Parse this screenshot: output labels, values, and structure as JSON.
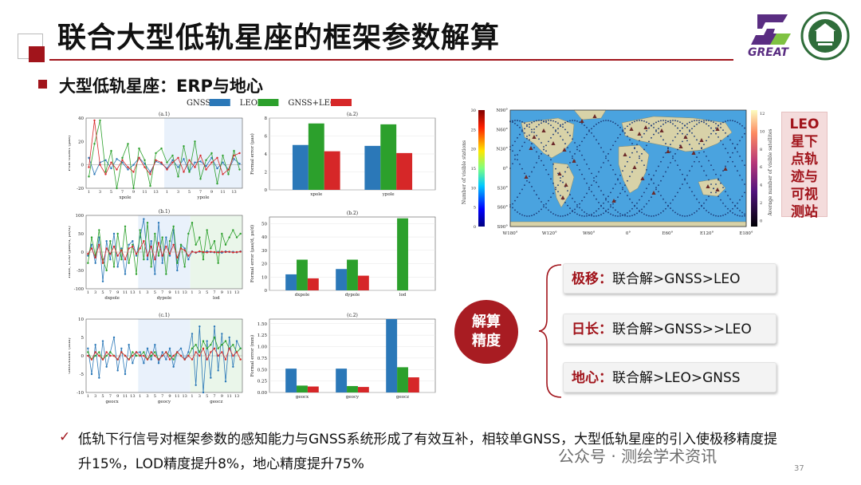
{
  "header": {
    "title": "联合大型低轨星座的框架参数解算"
  },
  "logo": {
    "great_text": "GREAT"
  },
  "section": {
    "subtitle": "大型低轨星座：ERP与地心"
  },
  "legend": {
    "gnss": "GNSS",
    "leo": "LEO",
    "combined": "GNSS+LEO"
  },
  "colors": {
    "gnss": "#2b78b8",
    "leo": "#2ca02c",
    "combined": "#d62728",
    "accent": "#a1141b"
  },
  "chart_data": [
    {
      "id": "a2",
      "type": "bar",
      "title": "(a.2)",
      "ylabel": "Formal error (μas)",
      "categories": [
        "xpole",
        "ypole"
      ],
      "ylim": [
        0,
        8
      ],
      "yticks": [
        "0",
        "2",
        "4",
        "6",
        "8"
      ],
      "series": [
        {
          "name": "GNSS",
          "values": [
            5.0,
            4.9
          ]
        },
        {
          "name": "LEO",
          "values": [
            7.4,
            7.3
          ]
        },
        {
          "name": "GNSS+LEO",
          "values": [
            4.3,
            4.1
          ]
        }
      ]
    },
    {
      "id": "b2",
      "type": "bar",
      "title": "(b.2)",
      "ylabel": "Formal error (μas/d, μs/d)",
      "categories": [
        "dxpole",
        "dypole",
        "lod"
      ],
      "ylim": [
        0,
        55
      ],
      "yticks": [
        "0",
        "10",
        "20",
        "30",
        "40",
        "50"
      ],
      "series": [
        {
          "name": "GNSS",
          "values": [
            12,
            16,
            0
          ]
        },
        {
          "name": "LEO",
          "values": [
            23,
            23,
            54
          ]
        },
        {
          "name": "GNSS+LEO",
          "values": [
            9,
            11,
            0
          ]
        }
      ]
    },
    {
      "id": "c2",
      "type": "bar",
      "title": "(c.2)",
      "ylabel": "Formal error (mm)",
      "categories": [
        "geocx",
        "geocy",
        "geocz"
      ],
      "ylim": [
        0,
        1.6
      ],
      "yticks": [
        "0.00",
        "0.25",
        "0.50",
        "0.75",
        "1.00",
        "1.25",
        "1.50"
      ],
      "series": [
        {
          "name": "GNSS",
          "values": [
            0.52,
            0.52,
            1.6
          ]
        },
        {
          "name": "LEO",
          "values": [
            0.15,
            0.14,
            0.55
          ]
        },
        {
          "name": "GNSS+LEO",
          "values": [
            0.13,
            0.12,
            0.33
          ]
        }
      ]
    },
    {
      "id": "a1",
      "type": "line",
      "title": "(a.1)",
      "ylabel": "Pole offset (μas)",
      "ylim": [
        -20,
        40
      ],
      "yticks": [
        "-20",
        "0",
        "20",
        "40"
      ],
      "xgroups": [
        "xpole",
        "ypole"
      ],
      "xticks": [
        "1",
        "3",
        "5",
        "7",
        "9",
        "11",
        "13",
        "1",
        "3",
        "5",
        "7",
        "9",
        "11",
        "13"
      ],
      "series": [
        {
          "name": "GNSS",
          "values": [
            6,
            -8,
            2,
            4,
            -3,
            5,
            2,
            -4,
            0,
            6,
            1,
            -6,
            3,
            1,
            -3,
            4,
            -2,
            5,
            -6,
            2,
            3,
            -1,
            6,
            -3,
            2,
            -4,
            5,
            1
          ]
        },
        {
          "name": "LEO",
          "values": [
            -10,
            18,
            38,
            -6,
            12,
            -22,
            6,
            18,
            -28,
            14,
            4,
            -18,
            10,
            14,
            2,
            8,
            -10,
            16,
            -6,
            20,
            -12,
            4,
            10,
            -16,
            8,
            -8,
            12,
            -4
          ]
        },
        {
          "name": "GNSS+LEO",
          "values": [
            -2,
            38,
            0,
            -8,
            2,
            -4,
            4,
            -2,
            -6,
            6,
            -2,
            -8,
            4,
            2,
            -4,
            2,
            6,
            -6,
            4,
            -2,
            8,
            -4,
            2,
            6,
            -8,
            -4,
            8,
            10
          ]
        }
      ]
    },
    {
      "id": "b1",
      "type": "line",
      "title": "(b.1)",
      "ylabel": "Rate, LOD (μas/d, μs/d)",
      "ylim": [
        -100,
        100
      ],
      "yticks": [
        "-100",
        "-50",
        "0",
        "50",
        "100"
      ],
      "xgroups": [
        "dxpole",
        "dypole",
        "lod"
      ],
      "xticks": [
        "1",
        "3",
        "5",
        "7",
        "9",
        "11",
        "13",
        "1",
        "3",
        "5",
        "7",
        "9",
        "11",
        "13",
        "1",
        "3",
        "5",
        "7",
        "9",
        "11",
        "13"
      ],
      "series": [
        {
          "name": "GNSS",
          "values": [
            -10,
            20,
            -30,
            40,
            -80,
            30,
            -20,
            50,
            -40,
            10,
            -60,
            20,
            30,
            -10,
            40,
            90,
            -20,
            30,
            -60,
            80,
            -30,
            40,
            -10,
            60,
            -50,
            20,
            10,
            -20,
            2,
            -2,
            1,
            -1,
            2,
            0,
            -1,
            1,
            -2,
            2,
            0,
            1,
            -1,
            2
          ]
        },
        {
          "name": "LEO",
          "values": [
            -30,
            40,
            -10,
            60,
            -20,
            -50,
            30,
            -40,
            50,
            -20,
            70,
            -30,
            20,
            -60,
            60,
            -20,
            80,
            -40,
            50,
            -10,
            40,
            -60,
            30,
            70,
            -30,
            20,
            -40,
            50,
            80,
            20,
            40,
            -20,
            60,
            10,
            30,
            -30,
            50,
            20,
            40,
            60,
            40,
            50
          ]
        },
        {
          "name": "GNSS+LEO",
          "values": [
            -5,
            10,
            -15,
            20,
            -30,
            10,
            -5,
            15,
            -10,
            5,
            -20,
            10,
            15,
            -5,
            10,
            30,
            -10,
            15,
            -20,
            25,
            -10,
            15,
            -5,
            20,
            -15,
            10,
            5,
            -10,
            1,
            -1,
            2,
            0,
            -1,
            1,
            0,
            -1,
            1,
            0,
            1,
            -1,
            0,
            1
          ]
        }
      ]
    },
    {
      "id": "c1",
      "type": "line",
      "title": "(c.1)",
      "ylabel": "Geocenter (mm)",
      "ylim": [
        -10,
        10
      ],
      "yticks": [
        "-10",
        "-5",
        "0",
        "5",
        "10"
      ],
      "xgroups": [
        "geocx",
        "geocy",
        "geocz"
      ],
      "xticks": [
        "1",
        "3",
        "5",
        "7",
        "9",
        "11",
        "13",
        "1",
        "3",
        "5",
        "7",
        "9",
        "11",
        "13",
        "1",
        "3",
        "5",
        "7",
        "9",
        "11",
        "13"
      ],
      "series": [
        {
          "name": "GNSS",
          "values": [
            2,
            -5,
            3,
            -6,
            4,
            -3,
            1,
            5,
            -4,
            2,
            -5,
            3,
            -2,
            1,
            1,
            -2,
            2,
            -1,
            3,
            -2,
            1,
            -1,
            2,
            -3,
            1,
            2,
            -1,
            1,
            6,
            -8,
            8,
            -10,
            4,
            -6,
            8,
            -4,
            6,
            -7,
            5,
            -3,
            4,
            2
          ]
        },
        {
          "name": "LEO",
          "values": [
            1,
            -1,
            0,
            1,
            -1,
            0,
            1,
            0,
            -1,
            1,
            0,
            -1,
            1,
            0,
            0,
            1,
            -1,
            0,
            1,
            -1,
            0,
            1,
            0,
            -1,
            1,
            0,
            -1,
            0,
            2,
            3,
            1,
            4,
            2,
            3,
            5,
            2,
            3,
            4,
            2,
            3,
            1,
            2
          ]
        },
        {
          "name": "GNSS+LEO",
          "values": [
            0,
            -1,
            1,
            0,
            -1,
            1,
            0,
            0,
            -1,
            1,
            0,
            -1,
            0,
            1,
            0,
            0,
            -1,
            1,
            0,
            -1,
            0,
            1,
            -1,
            0,
            1,
            0,
            -1,
            0,
            -1,
            1,
            0,
            2,
            -1,
            1,
            2,
            0,
            1,
            -1,
            2,
            0,
            1,
            -1
          ]
        }
      ]
    }
  ],
  "map": {
    "yticks": [
      "N90°",
      "N60°",
      "N30°",
      "0°",
      "S30°",
      "S60°",
      "S90°"
    ],
    "xticks": [
      "W180°",
      "W120°",
      "W60°",
      "0°",
      "E60°",
      "E120°",
      "E180°"
    ],
    "left_label": "Number of visible stations",
    "left_cbar_ticks": [
      "30",
      "25",
      "20",
      "15",
      "10",
      "5",
      "0"
    ],
    "right_label": "Average number of visible satellites",
    "right_cbar_ticks": [
      "12",
      "10",
      "8",
      "6",
      "4",
      "2",
      "0"
    ]
  },
  "leo_note": "LEO星下点轨迹与可视测站",
  "center_label": "解算精度",
  "results": [
    {
      "key": "极移：",
      "value": "联合解>GNSS>LEO"
    },
    {
      "key": "日长：",
      "value": "联合解>GNSS>>LEO"
    },
    {
      "key": "地心：",
      "value": "联合解>LEO>GNSS"
    }
  ],
  "conclusion": "低轨下行信号对框架参数的感知能力与GNSS系统形成了有效互补，相较单GNSS，大型低轨星座的引入使极移精度提升15%，LOD精度提升8%，地心精度提升75%",
  "watermark": "公众号 · 测绘学术资讯",
  "page_number": "37"
}
